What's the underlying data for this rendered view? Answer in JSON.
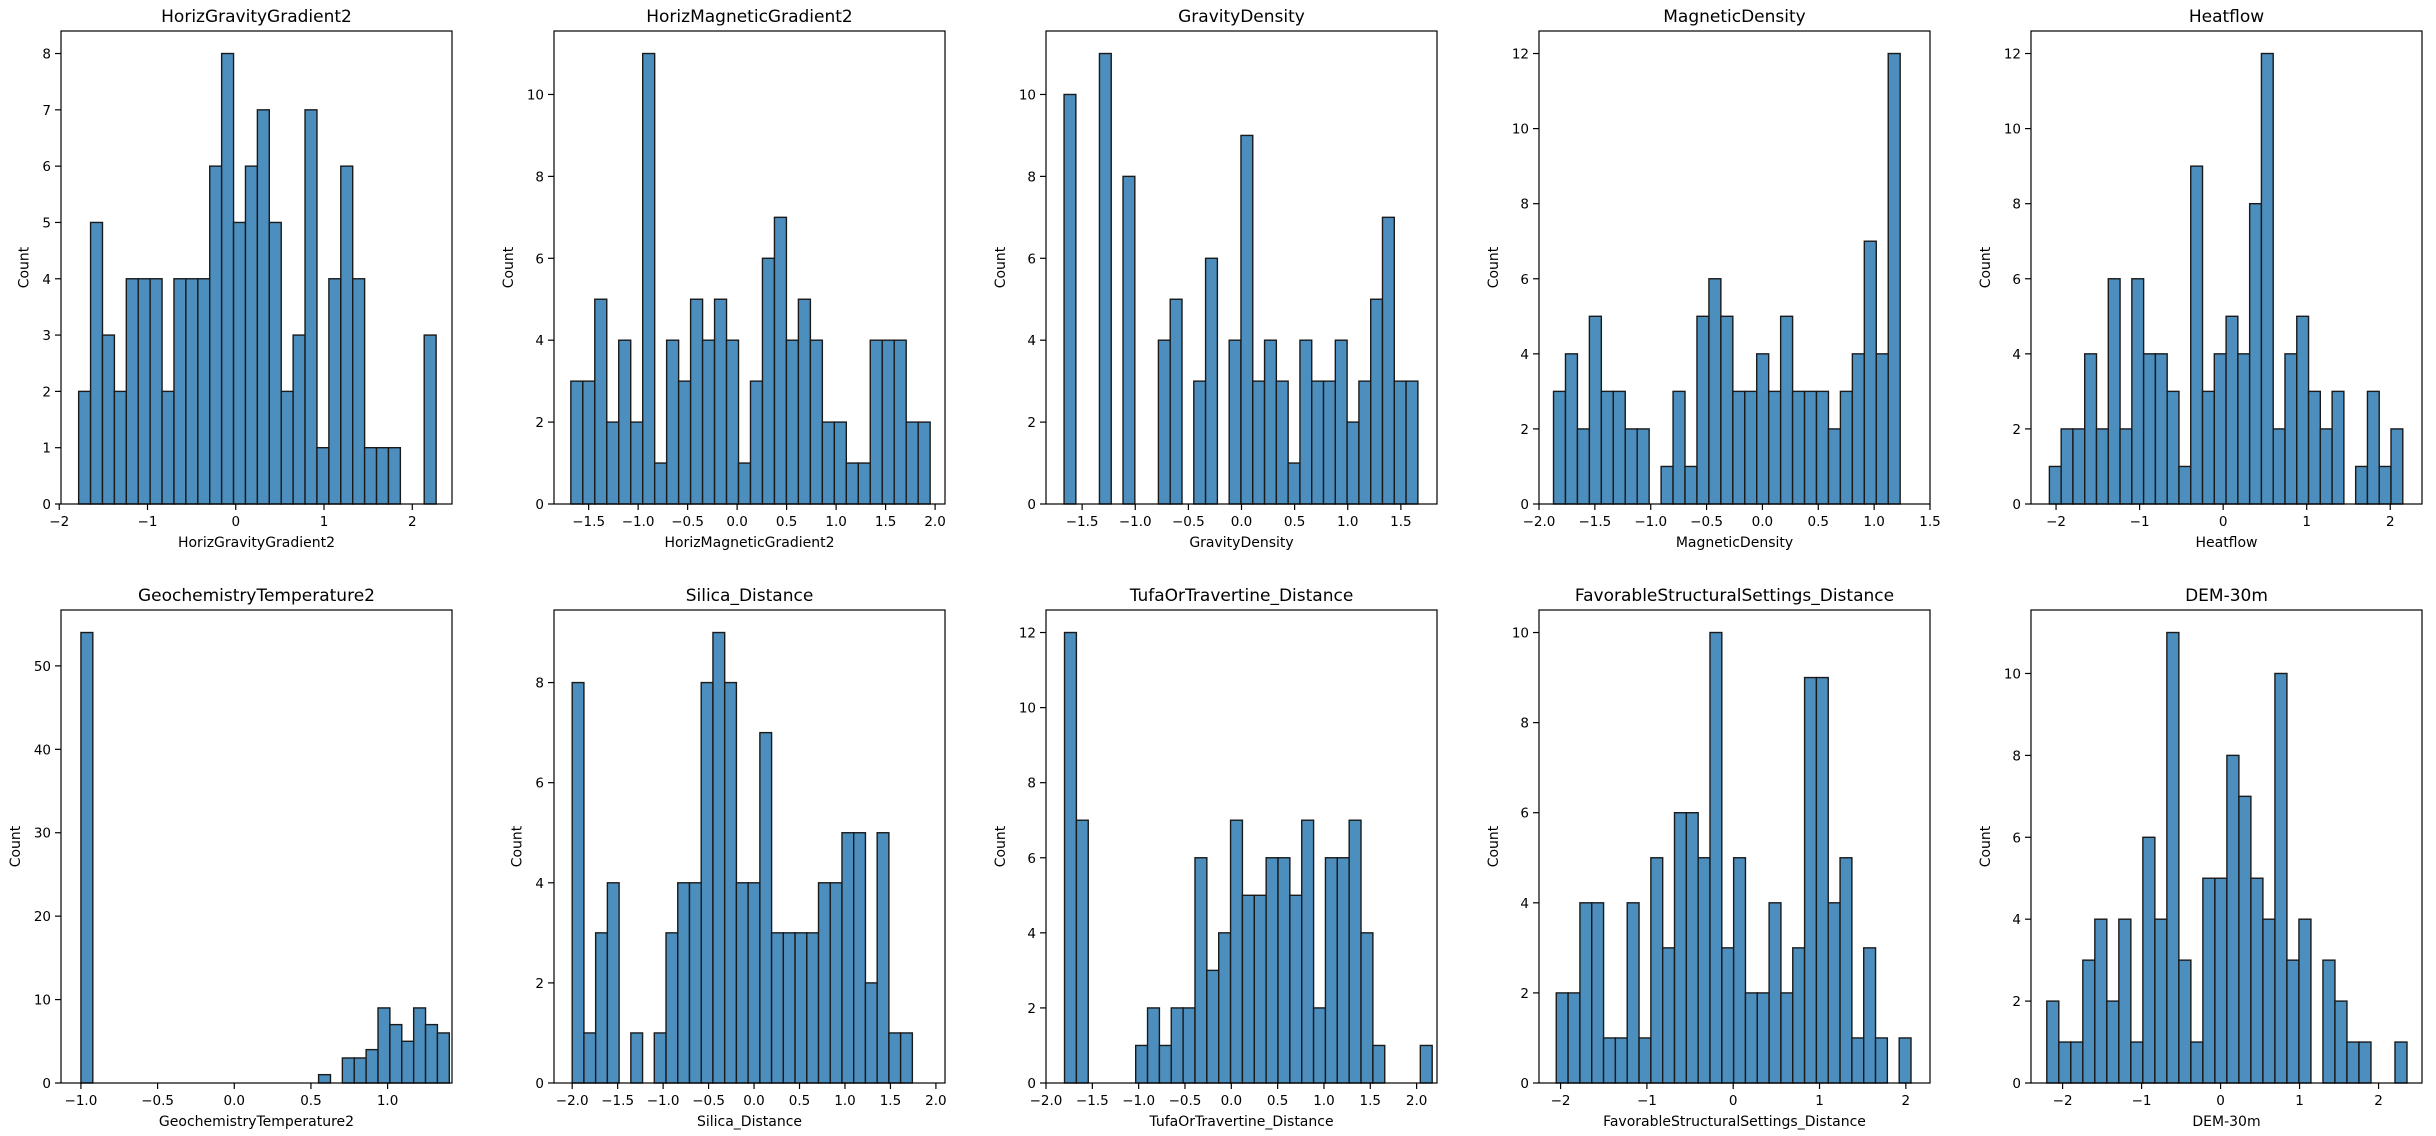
{
  "figure": {
    "background": "#ffffff",
    "bar_color": "#4c8fbf",
    "bar_edge": "#1a1a1a"
  },
  "chart_data": [
    {
      "type": "bar",
      "title": "HorizGravityGradient2",
      "xlabel": "HorizGravityGradient2",
      "ylabel": "Count",
      "xlim": [
        -1.98,
        2.45
      ],
      "ylim": [
        0,
        8.4
      ],
      "xticks": [
        -2,
        -1,
        0,
        1,
        2
      ],
      "xtick_labels": [
        "−2",
        "−1",
        "0",
        "1",
        "2"
      ],
      "yticks": [
        0,
        1,
        2,
        3,
        4,
        5,
        6,
        7,
        8
      ],
      "bin_start": -1.78,
      "bin_width": 0.135,
      "counts": [
        2,
        5,
        3,
        2,
        4,
        4,
        4,
        2,
        4,
        4,
        4,
        6,
        8,
        5,
        6,
        7,
        5,
        2,
        3,
        7,
        1,
        4,
        6,
        4,
        1,
        1,
        1,
        0,
        0,
        3
      ]
    },
    {
      "type": "bar",
      "title": "HorizMagneticGradient2",
      "xlabel": "HorizMagneticGradient2",
      "ylabel": "Count",
      "xlim": [
        -1.85,
        2.1
      ],
      "ylim": [
        0,
        11.55
      ],
      "xticks": [
        -1.5,
        -1.0,
        -0.5,
        0.0,
        0.5,
        1.0,
        1.5,
        2.0
      ],
      "xtick_labels": [
        "−1.5",
        "−1.0",
        "−0.5",
        "0.0",
        "0.5",
        "1.0",
        "1.5",
        "2.0"
      ],
      "yticks": [
        0,
        2,
        4,
        6,
        8,
        10
      ],
      "bin_start": -1.68,
      "bin_width": 0.121,
      "counts": [
        3,
        3,
        5,
        2,
        4,
        2,
        11,
        1,
        4,
        3,
        5,
        4,
        5,
        4,
        1,
        3,
        6,
        7,
        4,
        5,
        4,
        2,
        2,
        1,
        1,
        4,
        4,
        4,
        2,
        2
      ]
    },
    {
      "type": "bar",
      "title": "GravityDensity",
      "xlabel": "GravityDensity",
      "ylabel": "Count",
      "xlim": [
        -1.84,
        1.84
      ],
      "ylim": [
        0,
        11.55
      ],
      "xticks": [
        -1.5,
        -1.0,
        -0.5,
        0.0,
        0.5,
        1.0,
        1.5
      ],
      "xtick_labels": [
        "−1.5",
        "−1.0",
        "−0.5",
        "0.0",
        "0.5",
        "1.0",
        "1.5"
      ],
      "yticks": [
        0,
        2,
        4,
        6,
        8,
        10
      ],
      "bin_start": -1.67,
      "bin_width": 0.111,
      "counts": [
        10,
        0,
        0,
        11,
        0,
        8,
        0,
        0,
        4,
        5,
        0,
        3,
        6,
        0,
        4,
        9,
        3,
        4,
        3,
        1,
        4,
        3,
        3,
        4,
        2,
        3,
        5,
        7,
        3,
        3
      ]
    },
    {
      "type": "bar",
      "title": "MagneticDensity",
      "xlabel": "MagneticDensity",
      "ylabel": "Count",
      "xlim": [
        -2.0,
        1.5
      ],
      "ylim": [
        0,
        12.6
      ],
      "xticks": [
        -2.0,
        -1.5,
        -1.0,
        -0.5,
        0.0,
        0.5,
        1.0,
        1.5
      ],
      "xtick_labels": [
        "−2.0",
        "−1.5",
        "−1.0",
        "−0.5",
        "0.0",
        "0.5",
        "1.0",
        "1.5"
      ],
      "yticks": [
        0,
        2,
        4,
        6,
        8,
        10,
        12
      ],
      "bin_start": -1.87,
      "bin_width": 0.107,
      "counts": [
        3,
        4,
        2,
        5,
        3,
        3,
        2,
        2,
        0,
        1,
        3,
        1,
        5,
        6,
        5,
        3,
        3,
        4,
        3,
        5,
        3,
        3,
        3,
        2,
        3,
        4,
        7,
        4,
        12,
        0
      ]
    },
    {
      "type": "bar",
      "title": "Heatflow",
      "xlabel": "Heatflow",
      "ylabel": "Count",
      "xlim": [
        -2.3,
        2.38
      ],
      "ylim": [
        0,
        12.6
      ],
      "xticks": [
        -2,
        -1,
        0,
        1,
        2
      ],
      "xtick_labels": [
        "−2",
        "−1",
        "0",
        "1",
        "2"
      ],
      "yticks": [
        0,
        2,
        4,
        6,
        8,
        10,
        12
      ],
      "bin_start": -2.08,
      "bin_width": 0.141,
      "counts": [
        1,
        2,
        2,
        4,
        2,
        6,
        2,
        6,
        4,
        4,
        3,
        1,
        9,
        3,
        4,
        5,
        4,
        8,
        12,
        2,
        4,
        5,
        3,
        2,
        3,
        0,
        1,
        3,
        1,
        2
      ]
    },
    {
      "type": "bar",
      "title": "GeochemistryTemperature2",
      "xlabel": "GeochemistryTemperature2",
      "ylabel": "Count",
      "xlim": [
        -1.13,
        1.42
      ],
      "ylim": [
        0,
        56.7
      ],
      "xticks": [
        -1.0,
        -0.5,
        0.0,
        0.5,
        1.0
      ],
      "xtick_labels": [
        "−1.0",
        "−0.5",
        "0.0",
        "0.5",
        "1.0"
      ],
      "yticks": [
        0,
        10,
        20,
        30,
        40,
        50
      ],
      "bin_start": -1.0,
      "bin_width": 0.0775,
      "counts": [
        54,
        0,
        0,
        0,
        0,
        0,
        0,
        0,
        0,
        0,
        0,
        0,
        0,
        0,
        0,
        0,
        0,
        0,
        0,
        0,
        1,
        0,
        3,
        3,
        4,
        9,
        7,
        5,
        9,
        7,
        6
      ]
    },
    {
      "type": "bar",
      "title": "Silica_Distance",
      "xlabel": "Silica_Distance",
      "ylabel": "Count",
      "xlim": [
        -2.2,
        2.1
      ],
      "ylim": [
        0,
        9.45
      ],
      "xticks": [
        -2.0,
        -1.5,
        -1.0,
        -0.5,
        0.0,
        0.5,
        1.0,
        1.5,
        2.0
      ],
      "xtick_labels": [
        "−2.0",
        "−1.5",
        "−1.0",
        "−0.5",
        "0.0",
        "0.5",
        "1.0",
        "1.5",
        "2.0"
      ],
      "yticks": [
        0,
        2,
        4,
        6,
        8
      ],
      "bin_start": -2.0,
      "bin_width": 0.129,
      "counts": [
        8,
        1,
        3,
        4,
        0,
        1,
        0,
        1,
        3,
        4,
        4,
        8,
        9,
        8,
        4,
        4,
        7,
        3,
        3,
        3,
        3,
        4,
        4,
        5,
        5,
        2,
        5,
        1,
        1,
        0
      ]
    },
    {
      "type": "bar",
      "title": "TufaOrTravertine_Distance",
      "xlabel": "TufaOrTravertine_Distance",
      "ylabel": "Count",
      "xlim": [
        -2.0,
        2.22
      ],
      "ylim": [
        0,
        12.6
      ],
      "xticks": [
        -2.0,
        -1.5,
        -1.0,
        -0.5,
        0.0,
        0.5,
        1.0,
        1.5,
        2.0
      ],
      "xtick_labels": [
        "−2.0",
        "−1.5",
        "−1.0",
        "−0.5",
        "0.0",
        "0.5",
        "1.0",
        "1.5",
        "2.0"
      ],
      "yticks": [
        0,
        2,
        4,
        6,
        8,
        10,
        12
      ],
      "bin_start": -1.8,
      "bin_width": 0.128,
      "counts": [
        12,
        7,
        0,
        0,
        0,
        0,
        1,
        2,
        1,
        2,
        2,
        6,
        3,
        4,
        7,
        5,
        5,
        6,
        6,
        5,
        7,
        2,
        6,
        6,
        7,
        4,
        1,
        0,
        0,
        0,
        1
      ]
    },
    {
      "type": "bar",
      "title": "FavorableStructuralSettings_Distance",
      "xlabel": "FavorableStructuralSettings_Distance",
      "ylabel": "Count",
      "xlim": [
        -2.25,
        2.28
      ],
      "ylim": [
        0,
        10.5
      ],
      "xticks": [
        -2,
        -1,
        0,
        1,
        2
      ],
      "xtick_labels": [
        "−2",
        "−1",
        "0",
        "1",
        "2"
      ],
      "yticks": [
        0,
        2,
        4,
        6,
        8,
        10
      ],
      "bin_start": -2.05,
      "bin_width": 0.137,
      "counts": [
        2,
        2,
        4,
        4,
        1,
        1,
        4,
        1,
        5,
        3,
        6,
        6,
        5,
        10,
        3,
        5,
        2,
        2,
        4,
        2,
        3,
        9,
        9,
        4,
        5,
        1,
        3,
        1,
        0,
        1
      ]
    },
    {
      "type": "bar",
      "title": "DEM-30m",
      "xlabel": "DEM-30m",
      "ylabel": "Count",
      "xlim": [
        -2.4,
        2.55
      ],
      "ylim": [
        0,
        11.55
      ],
      "xticks": [
        -2,
        -1,
        0,
        1,
        2
      ],
      "xtick_labels": [
        "−2",
        "−1",
        "0",
        "1",
        "2"
      ],
      "yticks": [
        0,
        2,
        4,
        6,
        8,
        10
      ],
      "bin_start": -2.2,
      "bin_width": 0.152,
      "counts": [
        2,
        1,
        1,
        3,
        4,
        2,
        4,
        1,
        6,
        4,
        11,
        3,
        1,
        5,
        5,
        8,
        7,
        5,
        4,
        10,
        3,
        4,
        0,
        3,
        2,
        1,
        1,
        0,
        0,
        1
      ]
    }
  ]
}
